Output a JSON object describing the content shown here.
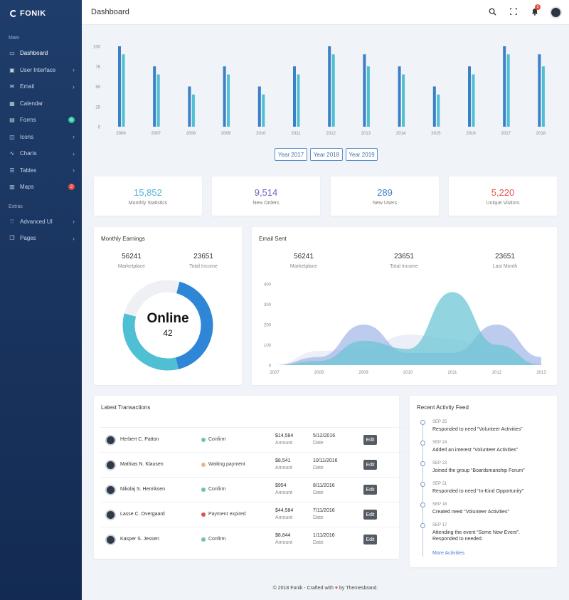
{
  "brand": {
    "name": "FONIK"
  },
  "sidebar": {
    "section_main": "Main",
    "section_extras": "Extras",
    "items": [
      {
        "label": "Dashboard",
        "icon": "monitor-icon",
        "glyph": "▭",
        "active": true
      },
      {
        "label": "User Interface",
        "icon": "briefcase-icon",
        "glyph": "▣",
        "chevron": true
      },
      {
        "label": "Email",
        "icon": "mail-icon",
        "glyph": "✉",
        "chevron": true
      },
      {
        "label": "Calendar",
        "icon": "calendar-icon",
        "glyph": "▦"
      },
      {
        "label": "Forms",
        "icon": "document-icon",
        "glyph": "▤",
        "badge": "6",
        "badge_color": "#2ecc9a"
      },
      {
        "label": "Icons",
        "icon": "cube-icon",
        "glyph": "◫",
        "chevron": true
      },
      {
        "label": "Charts",
        "icon": "line-chart-icon",
        "glyph": "∿",
        "chevron": true
      },
      {
        "label": "Tables",
        "icon": "table-icon",
        "glyph": "☰",
        "chevron": true
      },
      {
        "label": "Maps",
        "icon": "map-icon",
        "glyph": "▥",
        "badge": "2",
        "badge_color": "#e74c3c"
      }
    ],
    "extras": [
      {
        "label": "Advanced UI",
        "icon": "heart-icon",
        "glyph": "♡",
        "chevron": true
      },
      {
        "label": "Pages",
        "icon": "pages-icon",
        "glyph": "❐",
        "chevron": true
      }
    ]
  },
  "topbar": {
    "title": "Dashboard",
    "notification_count": "3"
  },
  "chart_data": [
    {
      "type": "bar",
      "categories": [
        "2006",
        "2007",
        "2008",
        "2009",
        "2010",
        "2011",
        "2012",
        "2013",
        "2014",
        "2015",
        "2016",
        "2017",
        "2018"
      ],
      "series": [
        {
          "values": [
            100,
            75,
            50,
            75,
            50,
            75,
            100,
            90,
            75,
            50,
            75,
            100,
            90
          ],
          "color": "#3b7fc7"
        },
        {
          "values": [
            90,
            65,
            40,
            65,
            40,
            65,
            90,
            75,
            65,
            40,
            65,
            90,
            75
          ],
          "color": "#4fbfd3"
        }
      ],
      "y_ticks": [
        "0",
        "25",
        "50",
        "75",
        "100"
      ],
      "ylim": [
        0,
        100
      ]
    },
    {
      "type": "area",
      "x": [
        "2007",
        "2008",
        "2009",
        "2010",
        "2011",
        "2012",
        "2013"
      ],
      "series": [
        {
          "values": [
            0,
            40,
            200,
            60,
            60,
            200,
            40
          ],
          "color": "#a6b9e8"
        },
        {
          "values": [
            0,
            70,
            80,
            150,
            130,
            60,
            10
          ],
          "color": "#e6e9f4"
        },
        {
          "values": [
            0,
            20,
            120,
            80,
            360,
            100,
            0
          ],
          "color": "#6ec5d6"
        }
      ],
      "y_ticks": [
        "0",
        "100",
        "200",
        "300",
        "400"
      ],
      "ylim": [
        0,
        400
      ]
    }
  ],
  "year_buttons": [
    "Year 2017",
    "Year 2018",
    "Year 2019"
  ],
  "stats": [
    {
      "value": "15,852",
      "label": "Monthly Statistics",
      "color": "#4fb3d9"
    },
    {
      "value": "9,514",
      "label": "New Orders",
      "color": "#7a5fc7"
    },
    {
      "value": "289",
      "label": "New Users",
      "color": "#3b7fc7"
    },
    {
      "value": "5,220",
      "label": "Unique Visitors",
      "color": "#e2574c"
    }
  ],
  "monthly_earnings": {
    "title": "Monthly Earnings",
    "marketplace_value": "56241",
    "marketplace_label": "Marketplace",
    "income_value": "23651",
    "income_label": "Total Income",
    "donut_title": "Online",
    "donut_value": "42",
    "donut_segments": [
      {
        "fraction": 0.42,
        "color": "#2f86d6"
      },
      {
        "fraction": 0.33,
        "color": "#4fbfd3"
      },
      {
        "fraction": 0.25,
        "color": "#eef0f4"
      }
    ]
  },
  "email_sent": {
    "title": "Email Sent",
    "v1": "56241",
    "l1": "Marketplace",
    "v2": "23651",
    "l2": "Total Income",
    "v3": "23651",
    "l3": "Last Month"
  },
  "transactions": {
    "title": "Latest Transactions",
    "amount_label": "Amount",
    "date_label": "Date",
    "edit_label": "Edit",
    "rows": [
      {
        "name": "Herbert C. Patton",
        "status": "Confirm",
        "status_color": "#6bc7a0",
        "amount": "$14,584",
        "date": "5/12/2016"
      },
      {
        "name": "Mathias N. Klausen",
        "status": "Waiting payment",
        "status_color": "#f2b27a",
        "amount": "$8,541",
        "date": "10/11/2016"
      },
      {
        "name": "Nikolaj S. Henriksen",
        "status": "Confirm",
        "status_color": "#6bc7a0",
        "amount": "$954",
        "date": "8/11/2016"
      },
      {
        "name": "Lasse C. Overgaard",
        "status": "Payment expired",
        "status_color": "#d9534f",
        "amount": "$44,584",
        "date": "7/11/2016"
      },
      {
        "name": "Kasper S. Jessen",
        "status": "Confirm",
        "status_color": "#6bc7a0",
        "amount": "$8,844",
        "date": "1/11/2016"
      }
    ]
  },
  "activity": {
    "title": "Recent Activity Feed",
    "items": [
      {
        "date": "SEP 25",
        "text": "Responded to need “Volunteer Activities”"
      },
      {
        "date": "SEP 24",
        "text": "Added an interest “Volunteer Activities”"
      },
      {
        "date": "SEP 23",
        "text": "Joined the group “Boardsmanship Forum”"
      },
      {
        "date": "SEP 21",
        "text": "Responded to need “In-Kind Opportunity”"
      },
      {
        "date": "SEP 18",
        "text": "Created need “Volunteer Activities”"
      },
      {
        "date": "SEP 17",
        "text": "Attending the event “Some New Event”. Responded to needed."
      }
    ],
    "more": "More Activities"
  },
  "footer": {
    "pre": "© 2018 Fonik - Crafted with",
    "post": "by Themesbrand."
  }
}
